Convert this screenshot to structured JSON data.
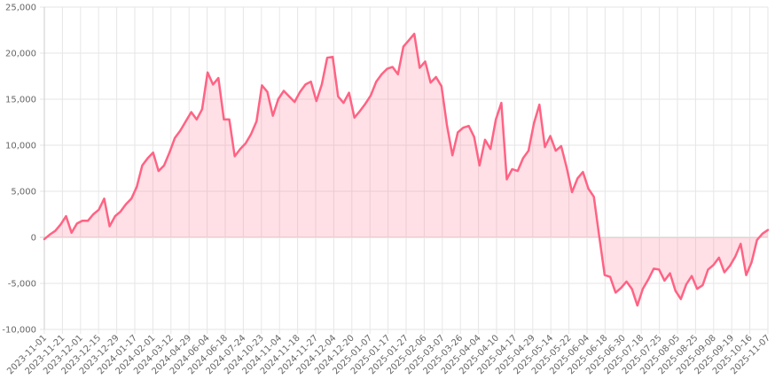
{
  "colors": {
    "line": "#ff6384",
    "fill": "rgba(255,99,132,0.20)",
    "grid": "#e6e6e6",
    "zero_grid": "#d0d0d0",
    "text": "#666666"
  },
  "chart_data": {
    "type": "area",
    "title": "",
    "xlabel": "",
    "ylabel": "",
    "ylim": [
      -10000,
      25000
    ],
    "yticks": [
      25000,
      20000,
      15000,
      10000,
      5000,
      0,
      -5000,
      -10000
    ],
    "ytick_labels": [
      "25,000",
      "20,000",
      "15,000",
      "10,000",
      "5,000",
      "0",
      "-5,000",
      "-10,000"
    ],
    "grid": true,
    "fill_to": 0,
    "xtick_labels": [
      "2023-11-01",
      "2023-11-21",
      "2023-12-01",
      "2023-12-15",
      "2023-12-29",
      "2024-01-17",
      "2024-02-01",
      "2024-03-12",
      "2024-04-29",
      "2024-06-04",
      "2024-06-18",
      "2024-07-24",
      "2024-10-23",
      "2024-11-04",
      "2024-11-18",
      "2024-11-27",
      "2024-12-04",
      "2024-12-20",
      "2025-01-07",
      "2025-01-17",
      "2025-01-27",
      "2025-02-06",
      "2025-03-07",
      "2025-03-26",
      "2025-04-04",
      "2025-04-10",
      "2025-04-17",
      "2025-04-29",
      "2025-05-14",
      "2025-05-22",
      "2025-06-04",
      "2025-06-18",
      "2025-06-30",
      "2025-07-18",
      "2025-07-25",
      "2025-08-05",
      "2025-08-25",
      "2025-09-08",
      "2025-09-19",
      "2025-10-16",
      "2025-11-07"
    ],
    "series": [
      {
        "values": [
          -200,
          300,
          700,
          1400,
          2300,
          500,
          1500,
          1800,
          1800,
          2500,
          3000,
          4200,
          1200,
          2300,
          2800,
          3600,
          4200,
          5500,
          7800,
          8600,
          9200,
          7200,
          7800,
          9200,
          10800,
          11600,
          12600,
          13600,
          12800,
          13900,
          17900,
          16600,
          17300,
          12800,
          12800,
          8800,
          9600,
          10200,
          11200,
          12600,
          16500,
          15800,
          13200,
          15000,
          15900,
          15300,
          14700,
          15800,
          16600,
          16900,
          14800,
          16600,
          19500,
          19600,
          15300,
          14600,
          15700,
          13000,
          13700,
          14500,
          15400,
          16900,
          17700,
          18300,
          18500,
          17700,
          20700,
          21400,
          22100,
          18400,
          19100,
          16800,
          17400,
          16400,
          12200,
          8900,
          11400,
          11900,
          12100,
          10900,
          7800,
          10600,
          9600,
          12800,
          14600,
          6300,
          7400,
          7200,
          8600,
          9400,
          12400,
          14400,
          9800,
          11000,
          9400,
          9900,
          7600,
          4900,
          6400,
          7100,
          5300,
          4400,
          100,
          -4100,
          -4300,
          -6000,
          -5500,
          -4800,
          -5600,
          -7400,
          -5600,
          -4600,
          -3400,
          -3500,
          -4700,
          -3900,
          -5800,
          -6700,
          -5100,
          -4200,
          -5600,
          -5200,
          -3500,
          -3000,
          -2200,
          -3800,
          -3100,
          -2100,
          -700,
          -4100,
          -2700,
          -300,
          400,
          800
        ]
      }
    ]
  }
}
